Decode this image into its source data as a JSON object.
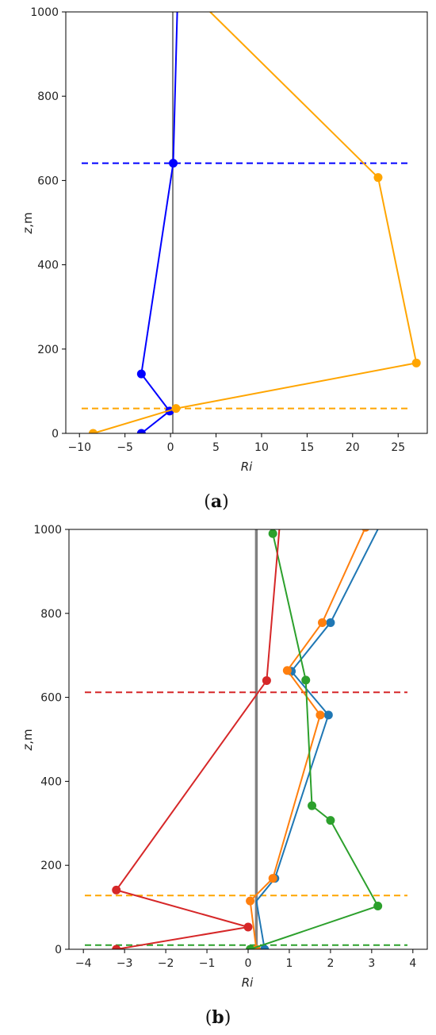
{
  "chart_data": [
    {
      "type": "line",
      "panel_label_prefix": "(",
      "panel_label": "a",
      "panel_label_suffix": ")",
      "xlabel": "Ri",
      "ylabel": "z,m",
      "xlim": [
        -11.5,
        28.2
      ],
      "ylim": [
        0,
        1000
      ],
      "xticks": [
        -10,
        -5,
        0,
        5,
        10,
        15,
        20,
        25
      ],
      "yticks": [
        0,
        200,
        400,
        600,
        800,
        1000
      ],
      "vertical_reference": {
        "x": 0.25,
        "color": "#808080"
      },
      "series": [
        {
          "color": "#0000ff",
          "x": [
            -3.2,
            -0.1,
            -3.2,
            0.3,
            0.8
          ],
          "y": [
            0,
            53,
            141,
            641,
            1050
          ],
          "markers": [
            true,
            true,
            true,
            true,
            false
          ]
        },
        {
          "color": "#ffa500",
          "x": [
            -8.5,
            0.6,
            27.0,
            22.8,
            2.0
          ],
          "y": [
            0,
            59,
            167,
            607,
            1050
          ],
          "markers": [
            true,
            true,
            true,
            true,
            false
          ]
        }
      ],
      "hlines": [
        {
          "y": 641,
          "color": "#0000ff"
        },
        {
          "y": 59,
          "color": "#ffa500"
        }
      ]
    },
    {
      "type": "line",
      "panel_label_prefix": "(",
      "panel_label": "b",
      "panel_label_suffix": ")",
      "xlabel": "Ri",
      "ylabel": "z,m",
      "xlim": [
        -4.35,
        4.35
      ],
      "ylim": [
        0,
        1000
      ],
      "xticks": [
        -4,
        -3,
        -2,
        -1,
        0,
        1,
        2,
        3,
        4
      ],
      "yticks": [
        0,
        200,
        400,
        600,
        800,
        1000
      ],
      "vertical_reference": {
        "x": 0.2,
        "color": "#808080"
      },
      "series": [
        {
          "color": "#1f77b4",
          "x": [
            0.4,
            0.2,
            0.65,
            1.95,
            1.05,
            2.0,
            3.2
          ],
          "y": [
            0,
            115,
            169,
            558,
            662,
            778,
            1010
          ],
          "markers": [
            true,
            false,
            true,
            true,
            true,
            true,
            false
          ]
        },
        {
          "color": "#ff7f0e",
          "x": [
            0.2,
            0.05,
            0.6,
            1.75,
            0.95,
            1.8,
            2.85
          ],
          "y": [
            0,
            115,
            169,
            558,
            664,
            778,
            1005
          ],
          "markers": [
            true,
            true,
            true,
            true,
            true,
            true,
            true
          ]
        },
        {
          "color": "#2ca02c",
          "x": [
            0.05,
            3.15,
            2.0,
            1.55,
            1.4,
            0.6
          ],
          "y": [
            0,
            103,
            307,
            342,
            641,
            990
          ],
          "markers": [
            true,
            true,
            true,
            true,
            true,
            true
          ]
        },
        {
          "color": "#d62728",
          "x": [
            -3.2,
            0.0,
            -3.2,
            0.45,
            0.8
          ],
          "y": [
            0,
            53,
            141,
            640,
            1050
          ],
          "markers": [
            true,
            true,
            true,
            true,
            false
          ]
        }
      ],
      "hlines": [
        {
          "y": 612,
          "color": "#d62728"
        },
        {
          "y": 128,
          "color": "#ffa500"
        },
        {
          "y": 10,
          "color": "#2ca02c"
        }
      ]
    }
  ]
}
